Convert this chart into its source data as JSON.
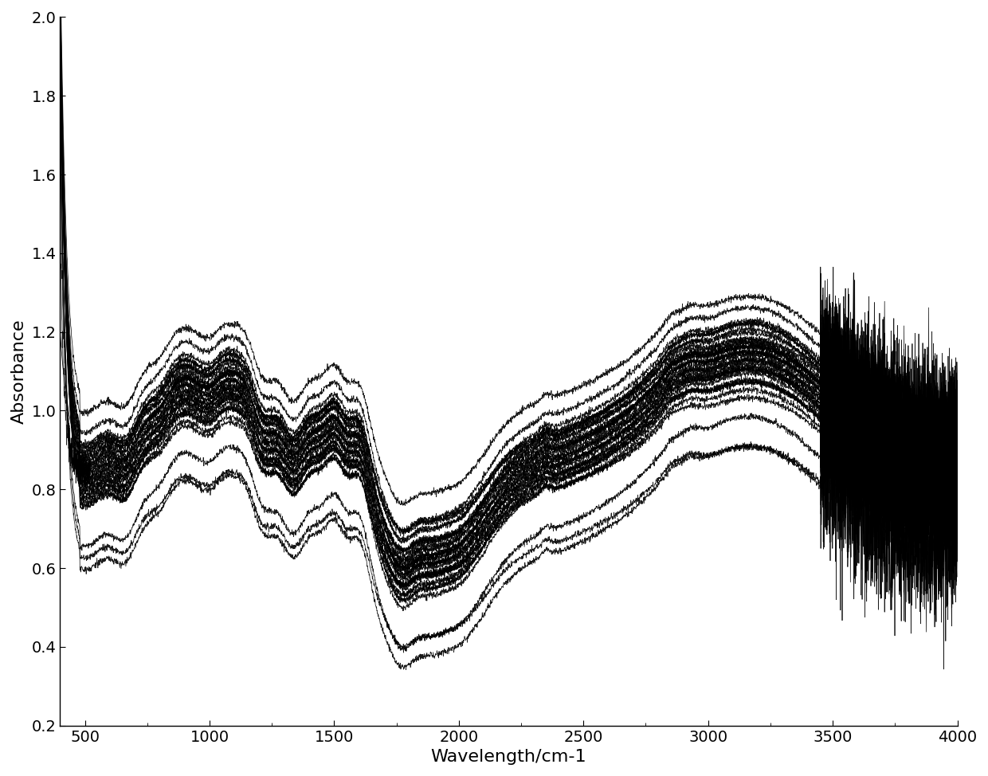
{
  "xlabel": "Wavelength/cm-1",
  "ylabel": "Absorbance",
  "xlim": [
    400,
    4000
  ],
  "ylim": [
    0.2,
    2.0
  ],
  "xticks": [
    500,
    1000,
    1500,
    2000,
    2500,
    3000,
    3500,
    4000
  ],
  "yticks": [
    0.2,
    0.4,
    0.6,
    0.8,
    1.0,
    1.2,
    1.4,
    1.6,
    1.8,
    2.0
  ],
  "num_spectra": 35,
  "line_color": "#000000",
  "line_width": 0.55,
  "background_color": "#ffffff",
  "xlabel_fontsize": 16,
  "ylabel_fontsize": 16,
  "tick_fontsize": 14
}
